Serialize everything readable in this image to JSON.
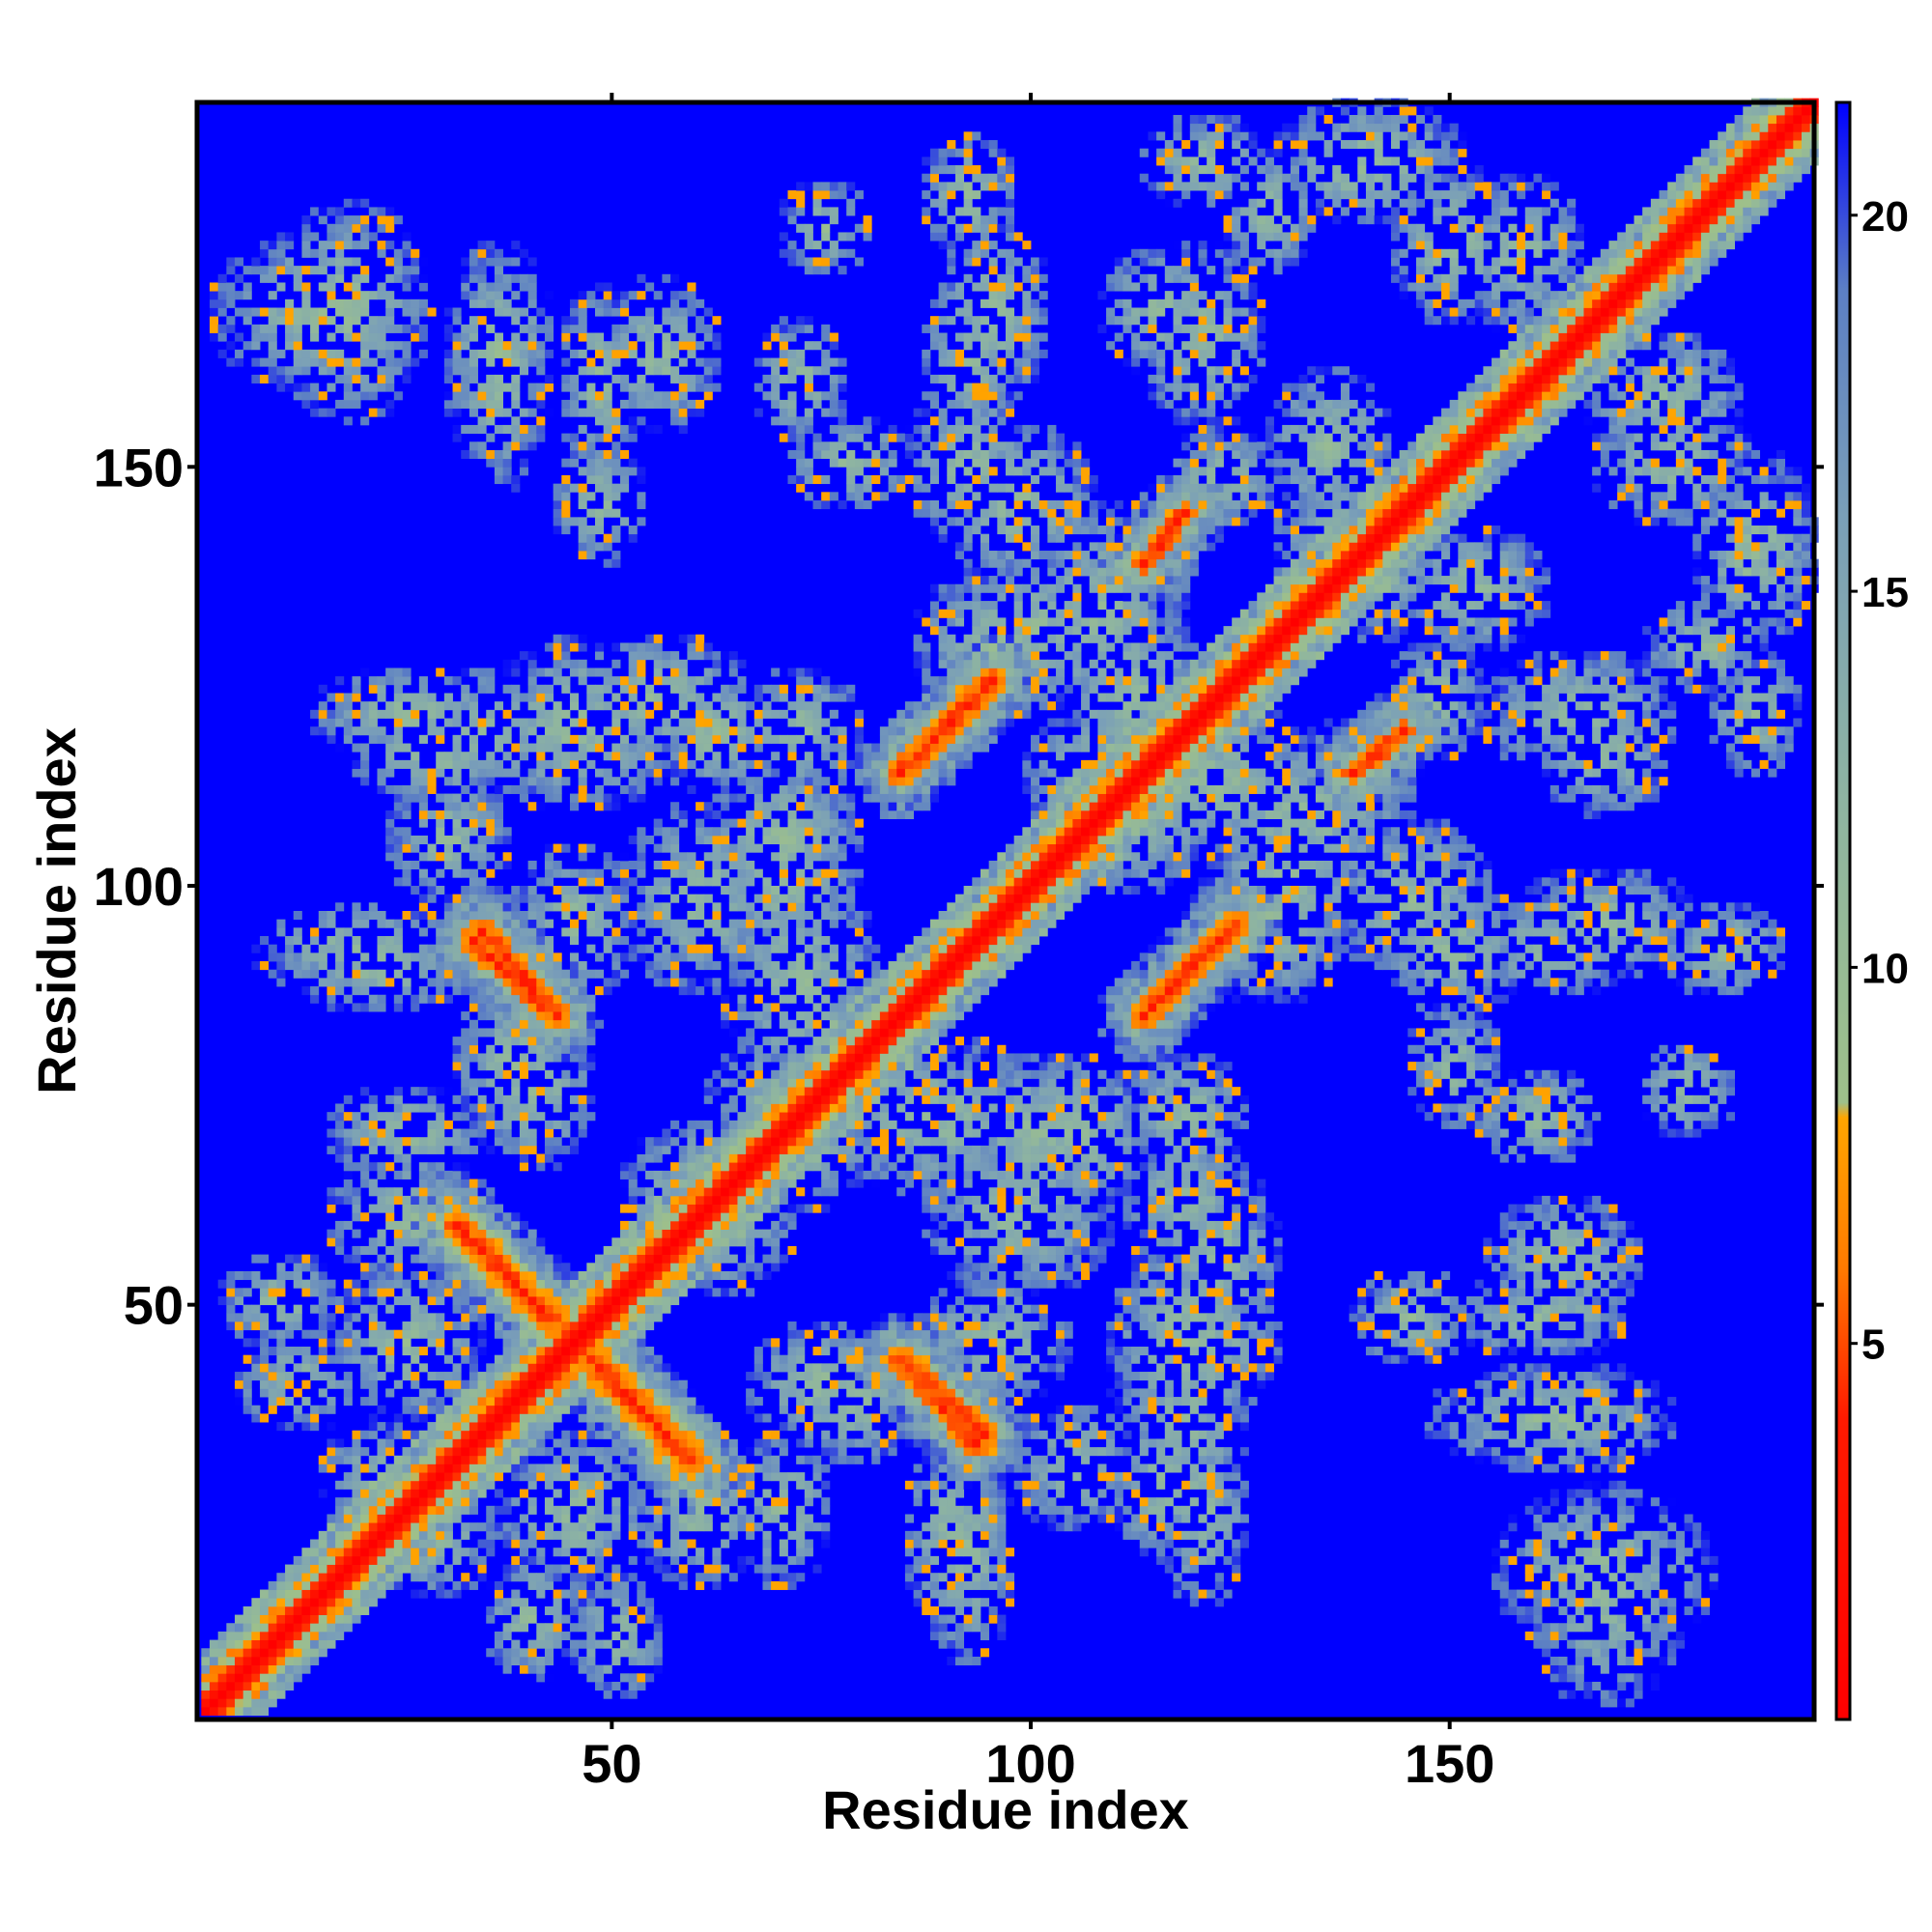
{
  "chart_data": {
    "type": "heatmap",
    "title": "",
    "xlabel": "Residue index",
    "ylabel": "Residue index",
    "xlim": [
      1,
      193
    ],
    "ylim": [
      1,
      193
    ],
    "x_ticks": [
      50,
      100,
      150
    ],
    "y_ticks": [
      50,
      100,
      150
    ],
    "grid": false,
    "colorbar": {
      "position": "right",
      "range": [
        0,
        21.5
      ],
      "ticks": [
        5,
        10,
        15,
        20
      ],
      "stops": [
        {
          "value": 0,
          "color": "#ff0000"
        },
        {
          "value": 4,
          "color": "#ff1a00"
        },
        {
          "value": 6,
          "color": "#ff7a00"
        },
        {
          "value": 8,
          "color": "#ffa500"
        },
        {
          "value": 8.2,
          "color": "#9ec08a"
        },
        {
          "value": 12,
          "color": "#8fb5a0"
        },
        {
          "value": 16,
          "color": "#7a9fb8"
        },
        {
          "value": 19,
          "color": "#5c7fc4"
        },
        {
          "value": 21.5,
          "color": "#0000ff"
        }
      ]
    },
    "background_color": "#0000ff",
    "features": [
      {
        "kind": "diagonal",
        "description": "self-contact diagonal",
        "from": [
          1,
          1
        ],
        "to": [
          193,
          193
        ]
      },
      {
        "kind": "antiparallel",
        "center": [
          45,
          45
        ],
        "from": [
          31,
          59
        ],
        "to": [
          58,
          32
        ]
      },
      {
        "kind": "antiparallel",
        "from": [
          33,
          93
        ],
        "to": [
          43,
          84
        ]
      },
      {
        "kind": "antiparallel",
        "from": [
          84,
          43
        ],
        "to": [
          94,
          34
        ]
      },
      {
        "kind": "parallel",
        "from": [
          84,
          113
        ],
        "to": [
          95,
          124
        ]
      },
      {
        "kind": "parallel",
        "from": [
          113,
          84
        ],
        "to": [
          124,
          95
        ]
      },
      {
        "kind": "parallel",
        "from": [
          113,
          138
        ],
        "to": [
          118,
          144
        ]
      },
      {
        "kind": "parallel",
        "from": [
          138,
          113
        ],
        "to": [
          144,
          118
        ]
      }
    ]
  }
}
